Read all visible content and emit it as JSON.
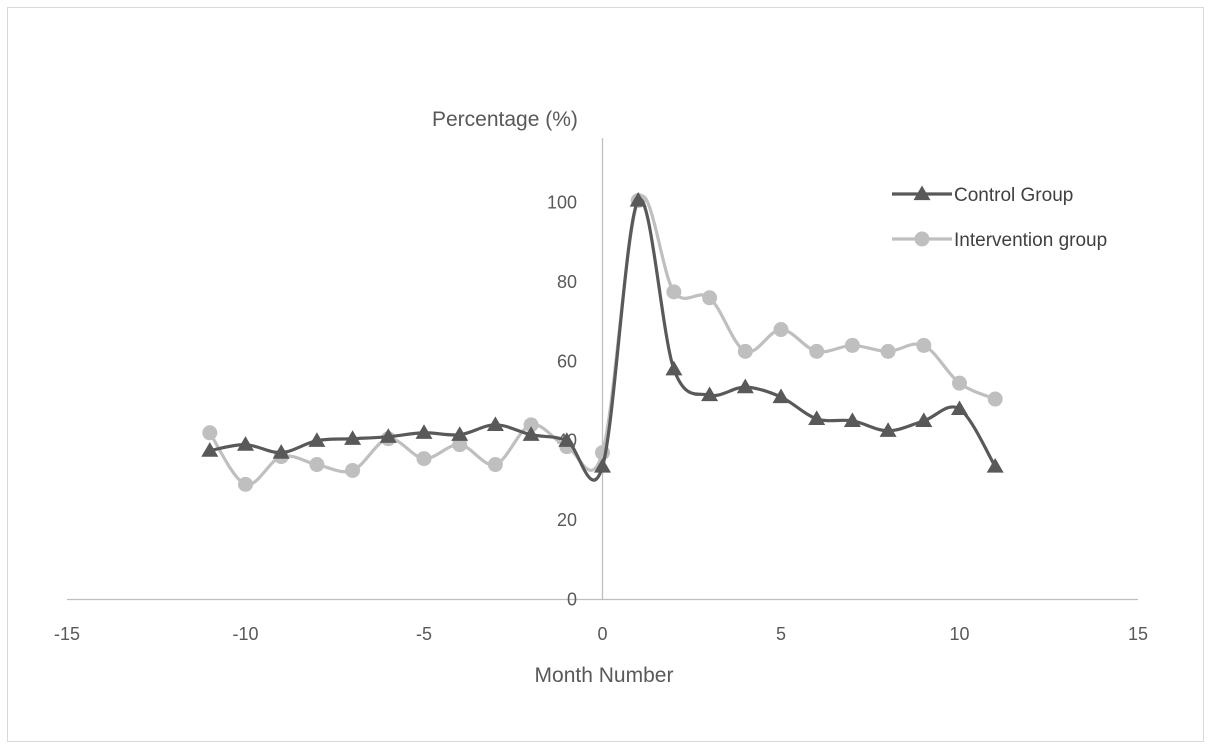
{
  "chart_data": {
    "type": "scatter",
    "xlabel": "Month Number",
    "ylabel": "Percentage (%)",
    "xlim": [
      -15,
      15
    ],
    "ylim": [
      0,
      110
    ],
    "x_ticks": [
      -15,
      -10,
      -5,
      0,
      5,
      10,
      15
    ],
    "y_ticks": [
      0,
      20,
      40,
      60,
      80,
      100
    ],
    "grid": false,
    "legend_position": "top-right",
    "series": [
      {
        "name": "Control Group",
        "marker": "triangle",
        "color": "#595959",
        "smooth": true,
        "x": [
          -11,
          -10,
          -9,
          -8,
          -7,
          -6,
          -5,
          -4,
          -3,
          -2,
          -1,
          0,
          1,
          2,
          3,
          4,
          5,
          6,
          7,
          8,
          9,
          10,
          11
        ],
        "y": [
          37.5,
          39,
          37,
          40,
          40.5,
          41,
          42,
          41.5,
          44,
          41.5,
          40,
          33.5,
          100.5,
          58,
          51.5,
          53.5,
          51,
          45.5,
          45,
          42.5,
          45,
          48,
          33.5
        ]
      },
      {
        "name": "Intervention group",
        "marker": "circle",
        "color": "#bfbfbf",
        "smooth": true,
        "x": [
          -11,
          -10,
          -9,
          -8,
          -7,
          -6,
          -5,
          -4,
          -3,
          -2,
          -1,
          0,
          1,
          2,
          3,
          4,
          5,
          6,
          7,
          8,
          9,
          10,
          11
        ],
        "y": [
          42,
          29,
          36,
          34,
          32.5,
          40.5,
          35.5,
          39,
          34,
          44,
          38.5,
          37,
          100.5,
          77.5,
          76,
          62.5,
          68,
          62.5,
          64,
          62.5,
          64,
          54.5,
          50.5
        ]
      }
    ]
  }
}
